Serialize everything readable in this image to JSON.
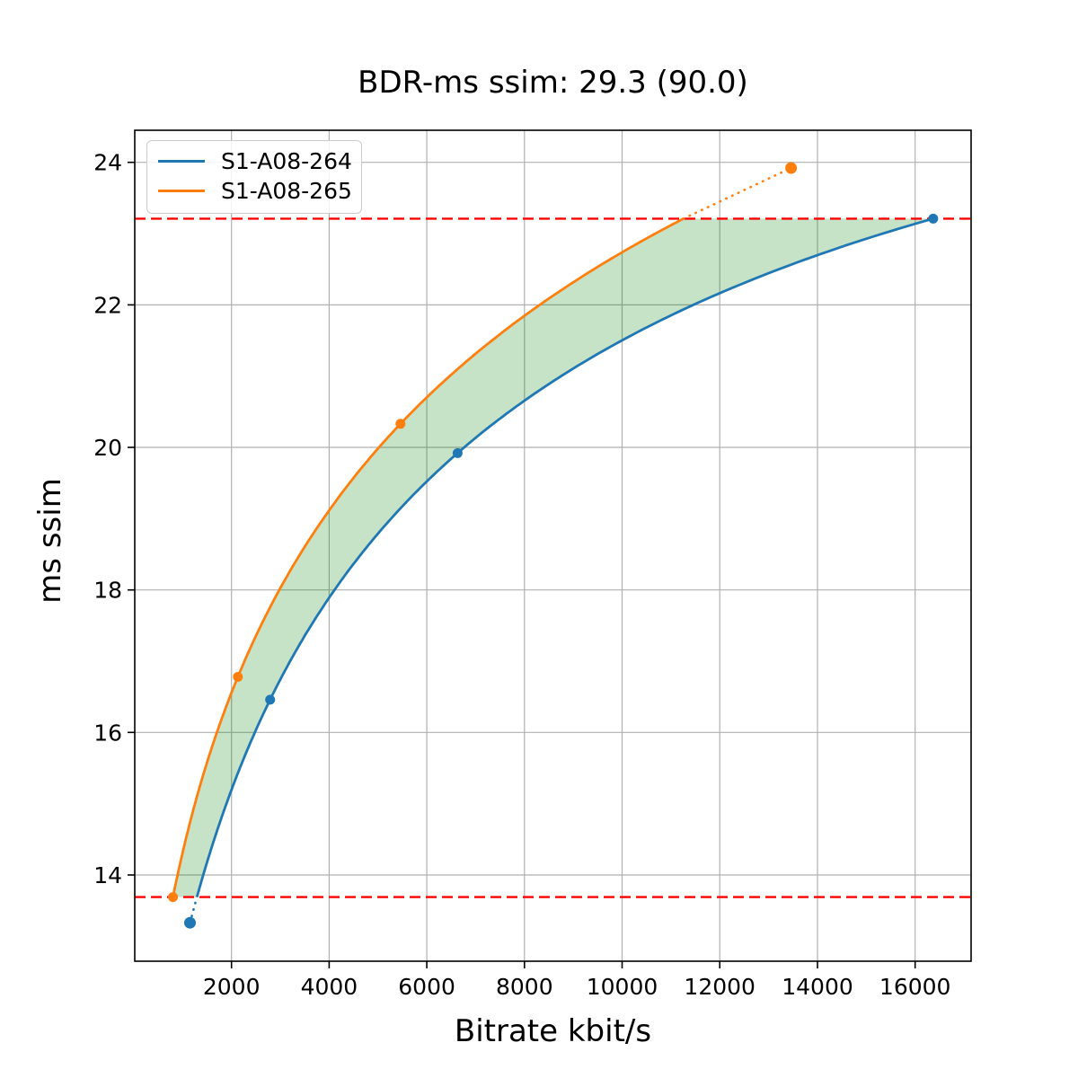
{
  "chart_data": {
    "type": "line",
    "title": "BDR-ms ssim: 29.3 (90.0)",
    "xlabel": "Bitrate kbit/s",
    "ylabel": "ms ssim",
    "xlim": [
      18,
      17147
    ],
    "ylim": [
      12.79,
      24.45
    ],
    "x_ticks": [
      2000,
      4000,
      6000,
      8000,
      10000,
      12000,
      14000,
      16000
    ],
    "y_ticks": [
      14,
      16,
      18,
      20,
      22,
      24
    ],
    "grid": true,
    "grid_color": "#b0b0b0",
    "legend_position": "upper-left",
    "interpolation": "cubic-in-log-bitrate",
    "series": [
      {
        "name": "S1-A08-264",
        "color": "#1f77b4",
        "points": [
          [
            1150,
            13.33
          ],
          [
            2790,
            16.46
          ],
          [
            6630,
            19.92
          ],
          [
            16370,
            23.21
          ]
        ]
      },
      {
        "name": "S1-A08-265",
        "color": "#ff7f0e",
        "points": [
          [
            800,
            13.69
          ],
          [
            2130,
            16.78
          ],
          [
            5460,
            20.33
          ],
          [
            13460,
            23.92
          ]
        ]
      }
    ],
    "bounds": {
      "lower": 13.69,
      "upper": 23.21,
      "color": "#ff0000",
      "style": "dashed"
    },
    "shaded_region": {
      "between": [
        "S1-A08-265",
        "S1-A08-264"
      ],
      "color": "#008000",
      "alpha": 0.22
    },
    "out_of_range_style": "dotted"
  }
}
